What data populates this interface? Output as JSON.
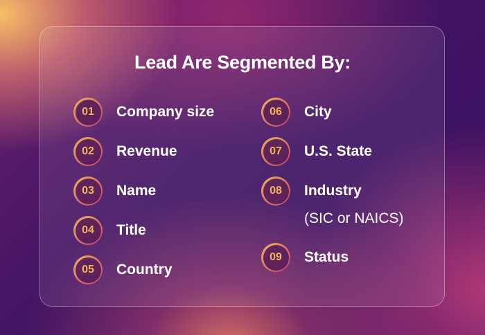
{
  "title": "Lead Are Segmented By:",
  "items": [
    {
      "num": "01",
      "label": "Company size"
    },
    {
      "num": "02",
      "label": "Revenue"
    },
    {
      "num": "03",
      "label": "Name"
    },
    {
      "num": "04",
      "label": "Title"
    },
    {
      "num": "05",
      "label": "Country"
    },
    {
      "num": "06",
      "label": "City"
    },
    {
      "num": "07",
      "label": "U.S. State"
    },
    {
      "num": "08",
      "label": "Industry",
      "sub": "(SIC or NAICS)"
    },
    {
      "num": "09",
      "label": "Status"
    }
  ]
}
